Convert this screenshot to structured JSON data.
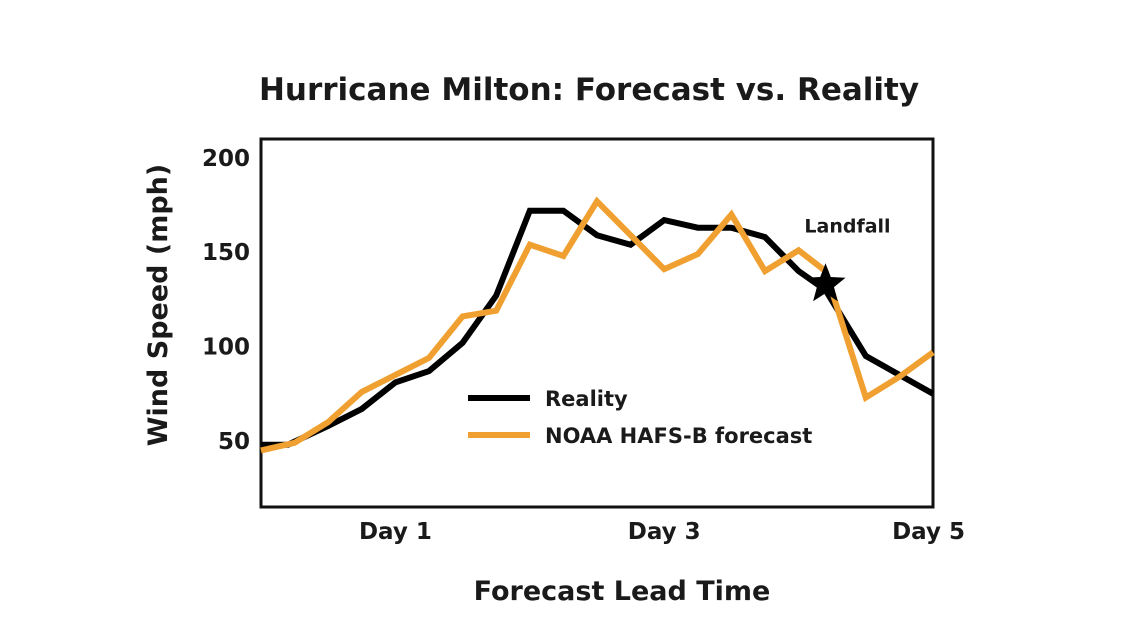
{
  "chart_data": {
    "type": "line",
    "title": "Hurricane Milton: Forecast vs. Reality",
    "xlabel": "Forecast Lead Time",
    "ylabel": "Wind Speed (mph)",
    "xlim": [
      0,
      5
    ],
    "ylim": [
      15,
      210
    ],
    "x_ticks": [
      {
        "value": 1.0,
        "label": "Day 1"
      },
      {
        "value": 3.0,
        "label": "Day 3"
      },
      {
        "value": 5.0,
        "label": "Day 5"
      }
    ],
    "y_ticks": [
      {
        "value": 50,
        "label": "50"
      },
      {
        "value": 100,
        "label": "100"
      },
      {
        "value": 150,
        "label": "150"
      },
      {
        "value": 200,
        "label": "200"
      }
    ],
    "grid": false,
    "legend_position": "center",
    "series": [
      {
        "name": "Reality",
        "color": "#000000",
        "points": [
          [
            0.0,
            48
          ],
          [
            0.2,
            48
          ],
          [
            0.5,
            58
          ],
          [
            0.75,
            67
          ],
          [
            1.0,
            81
          ],
          [
            1.25,
            87
          ],
          [
            1.5,
            102
          ],
          [
            1.75,
            127
          ],
          [
            2.0,
            172
          ],
          [
            2.25,
            172
          ],
          [
            2.5,
            159
          ],
          [
            2.75,
            154
          ],
          [
            3.0,
            167
          ],
          [
            3.25,
            163
          ],
          [
            3.5,
            163
          ],
          [
            3.75,
            158
          ],
          [
            4.0,
            140
          ],
          [
            4.2,
            130
          ],
          [
            4.5,
            95
          ],
          [
            4.75,
            85
          ],
          [
            5.0,
            75
          ]
        ]
      },
      {
        "name": "NOAA HAFS-B forecast",
        "color": "#F0A030",
        "points": [
          [
            0.0,
            45
          ],
          [
            0.25,
            49
          ],
          [
            0.5,
            60
          ],
          [
            0.75,
            76
          ],
          [
            1.0,
            85
          ],
          [
            1.25,
            94
          ],
          [
            1.5,
            116
          ],
          [
            1.75,
            119
          ],
          [
            2.0,
            154
          ],
          [
            2.25,
            148
          ],
          [
            2.5,
            177
          ],
          [
            2.75,
            159
          ],
          [
            3.0,
            141
          ],
          [
            3.25,
            149
          ],
          [
            3.5,
            170
          ],
          [
            3.75,
            140
          ],
          [
            4.0,
            151
          ],
          [
            4.2,
            140
          ],
          [
            4.5,
            73
          ],
          [
            4.75,
            84
          ],
          [
            5.0,
            97
          ]
        ]
      }
    ],
    "annotations": [
      {
        "label": "Landfall",
        "x": 4.2,
        "y": 133,
        "marker": "star"
      }
    ]
  }
}
